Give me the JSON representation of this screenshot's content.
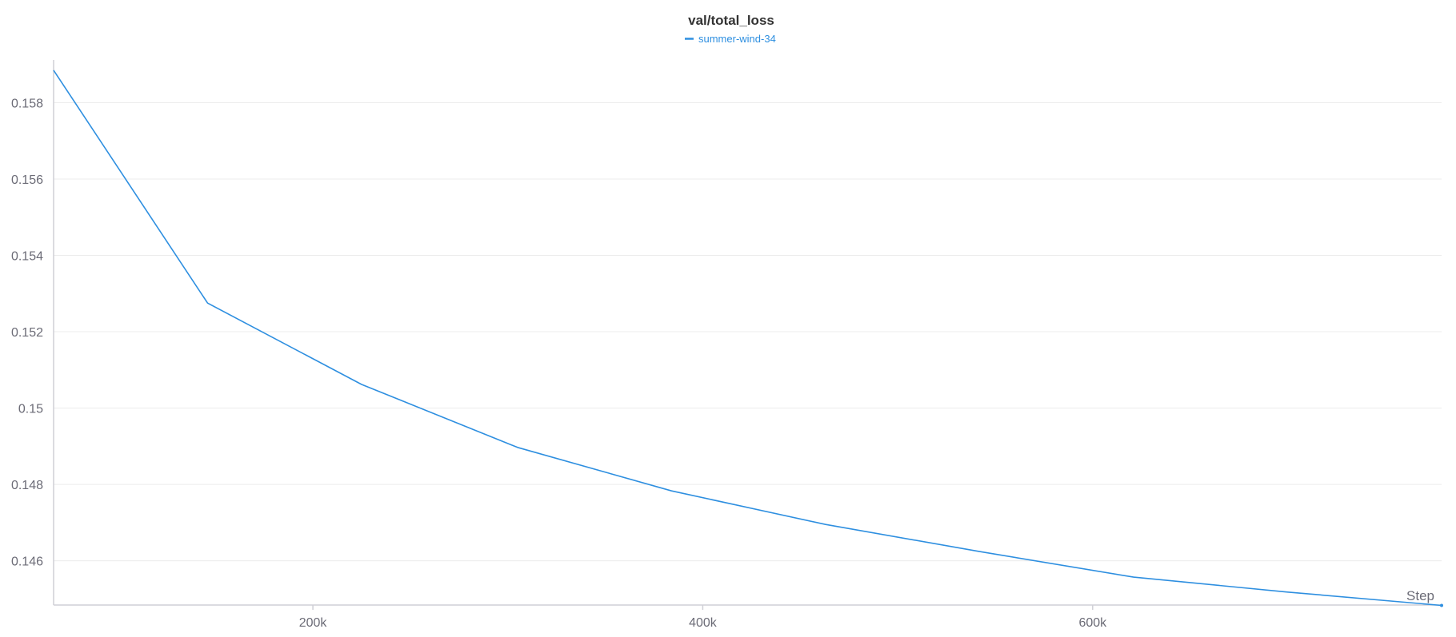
{
  "chart_data": {
    "type": "line",
    "title": "val/total_loss",
    "xlabel": "Step",
    "ylabel": "",
    "xlim": [
      67000,
      779000
    ],
    "ylim": [
      0.14484,
      0.15912
    ],
    "xticks": [
      200000,
      400000,
      600000
    ],
    "xtick_labels": [
      "200k",
      "400k",
      "600k"
    ],
    "yticks": [
      0.146,
      0.148,
      0.15,
      0.152,
      0.154,
      0.156,
      0.158
    ],
    "ytick_labels": [
      "0.146",
      "0.148",
      "0.15",
      "0.152",
      "0.154",
      "0.156",
      "0.158"
    ],
    "grid": true,
    "legend_position": "top-center",
    "series": [
      {
        "name": "summer-wind-34",
        "color": "#2e8fe0",
        "x": [
          67000,
          146000,
          225000,
          305000,
          384000,
          463000,
          542000,
          621000,
          700000,
          779000
        ],
        "y": [
          0.15885,
          0.15275,
          0.15062,
          0.14897,
          0.14783,
          0.14695,
          0.14624,
          0.14557,
          0.14518,
          0.14483
        ]
      }
    ]
  }
}
